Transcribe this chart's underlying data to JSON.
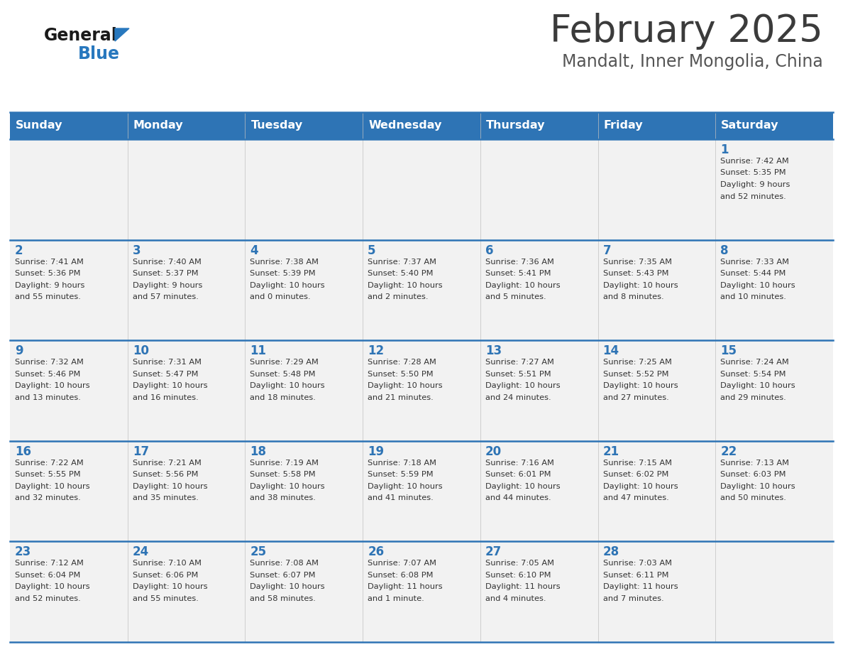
{
  "title": "February 2025",
  "subtitle": "Mandalt, Inner Mongolia, China",
  "header_bg": "#2E74B5",
  "header_text_color": "#FFFFFF",
  "cell_bg": "#F2F2F2",
  "day_headers": [
    "Sunday",
    "Monday",
    "Tuesday",
    "Wednesday",
    "Thursday",
    "Friday",
    "Saturday"
  ],
  "title_color": "#3B3B3B",
  "subtitle_color": "#555555",
  "day_number_color": "#2E74B5",
  "cell_text_color": "#333333",
  "divider_color": "#2E74B5",
  "logo_general_color": "#1A1A1A",
  "logo_blue_color": "#2878BE",
  "days": [
    {
      "date": 1,
      "col": 6,
      "row": 0,
      "sunrise": "7:42 AM",
      "sunset": "5:35 PM",
      "daylight": "9 hours and 52 minutes."
    },
    {
      "date": 2,
      "col": 0,
      "row": 1,
      "sunrise": "7:41 AM",
      "sunset": "5:36 PM",
      "daylight": "9 hours and 55 minutes."
    },
    {
      "date": 3,
      "col": 1,
      "row": 1,
      "sunrise": "7:40 AM",
      "sunset": "5:37 PM",
      "daylight": "9 hours and 57 minutes."
    },
    {
      "date": 4,
      "col": 2,
      "row": 1,
      "sunrise": "7:38 AM",
      "sunset": "5:39 PM",
      "daylight": "10 hours and 0 minutes."
    },
    {
      "date": 5,
      "col": 3,
      "row": 1,
      "sunrise": "7:37 AM",
      "sunset": "5:40 PM",
      "daylight": "10 hours and 2 minutes."
    },
    {
      "date": 6,
      "col": 4,
      "row": 1,
      "sunrise": "7:36 AM",
      "sunset": "5:41 PM",
      "daylight": "10 hours and 5 minutes."
    },
    {
      "date": 7,
      "col": 5,
      "row": 1,
      "sunrise": "7:35 AM",
      "sunset": "5:43 PM",
      "daylight": "10 hours and 8 minutes."
    },
    {
      "date": 8,
      "col": 6,
      "row": 1,
      "sunrise": "7:33 AM",
      "sunset": "5:44 PM",
      "daylight": "10 hours and 10 minutes."
    },
    {
      "date": 9,
      "col": 0,
      "row": 2,
      "sunrise": "7:32 AM",
      "sunset": "5:46 PM",
      "daylight": "10 hours and 13 minutes."
    },
    {
      "date": 10,
      "col": 1,
      "row": 2,
      "sunrise": "7:31 AM",
      "sunset": "5:47 PM",
      "daylight": "10 hours and 16 minutes."
    },
    {
      "date": 11,
      "col": 2,
      "row": 2,
      "sunrise": "7:29 AM",
      "sunset": "5:48 PM",
      "daylight": "10 hours and 18 minutes."
    },
    {
      "date": 12,
      "col": 3,
      "row": 2,
      "sunrise": "7:28 AM",
      "sunset": "5:50 PM",
      "daylight": "10 hours and 21 minutes."
    },
    {
      "date": 13,
      "col": 4,
      "row": 2,
      "sunrise": "7:27 AM",
      "sunset": "5:51 PM",
      "daylight": "10 hours and 24 minutes."
    },
    {
      "date": 14,
      "col": 5,
      "row": 2,
      "sunrise": "7:25 AM",
      "sunset": "5:52 PM",
      "daylight": "10 hours and 27 minutes."
    },
    {
      "date": 15,
      "col": 6,
      "row": 2,
      "sunrise": "7:24 AM",
      "sunset": "5:54 PM",
      "daylight": "10 hours and 29 minutes."
    },
    {
      "date": 16,
      "col": 0,
      "row": 3,
      "sunrise": "7:22 AM",
      "sunset": "5:55 PM",
      "daylight": "10 hours and 32 minutes."
    },
    {
      "date": 17,
      "col": 1,
      "row": 3,
      "sunrise": "7:21 AM",
      "sunset": "5:56 PM",
      "daylight": "10 hours and 35 minutes."
    },
    {
      "date": 18,
      "col": 2,
      "row": 3,
      "sunrise": "7:19 AM",
      "sunset": "5:58 PM",
      "daylight": "10 hours and 38 minutes."
    },
    {
      "date": 19,
      "col": 3,
      "row": 3,
      "sunrise": "7:18 AM",
      "sunset": "5:59 PM",
      "daylight": "10 hours and 41 minutes."
    },
    {
      "date": 20,
      "col": 4,
      "row": 3,
      "sunrise": "7:16 AM",
      "sunset": "6:01 PM",
      "daylight": "10 hours and 44 minutes."
    },
    {
      "date": 21,
      "col": 5,
      "row": 3,
      "sunrise": "7:15 AM",
      "sunset": "6:02 PM",
      "daylight": "10 hours and 47 minutes."
    },
    {
      "date": 22,
      "col": 6,
      "row": 3,
      "sunrise": "7:13 AM",
      "sunset": "6:03 PM",
      "daylight": "10 hours and 50 minutes."
    },
    {
      "date": 23,
      "col": 0,
      "row": 4,
      "sunrise": "7:12 AM",
      "sunset": "6:04 PM",
      "daylight": "10 hours and 52 minutes."
    },
    {
      "date": 24,
      "col": 1,
      "row": 4,
      "sunrise": "7:10 AM",
      "sunset": "6:06 PM",
      "daylight": "10 hours and 55 minutes."
    },
    {
      "date": 25,
      "col": 2,
      "row": 4,
      "sunrise": "7:08 AM",
      "sunset": "6:07 PM",
      "daylight": "10 hours and 58 minutes."
    },
    {
      "date": 26,
      "col": 3,
      "row": 4,
      "sunrise": "7:07 AM",
      "sunset": "6:08 PM",
      "daylight": "11 hours and 1 minute."
    },
    {
      "date": 27,
      "col": 4,
      "row": 4,
      "sunrise": "7:05 AM",
      "sunset": "6:10 PM",
      "daylight": "11 hours and 4 minutes."
    },
    {
      "date": 28,
      "col": 5,
      "row": 4,
      "sunrise": "7:03 AM",
      "sunset": "6:11 PM",
      "daylight": "11 hours and 7 minutes."
    }
  ]
}
